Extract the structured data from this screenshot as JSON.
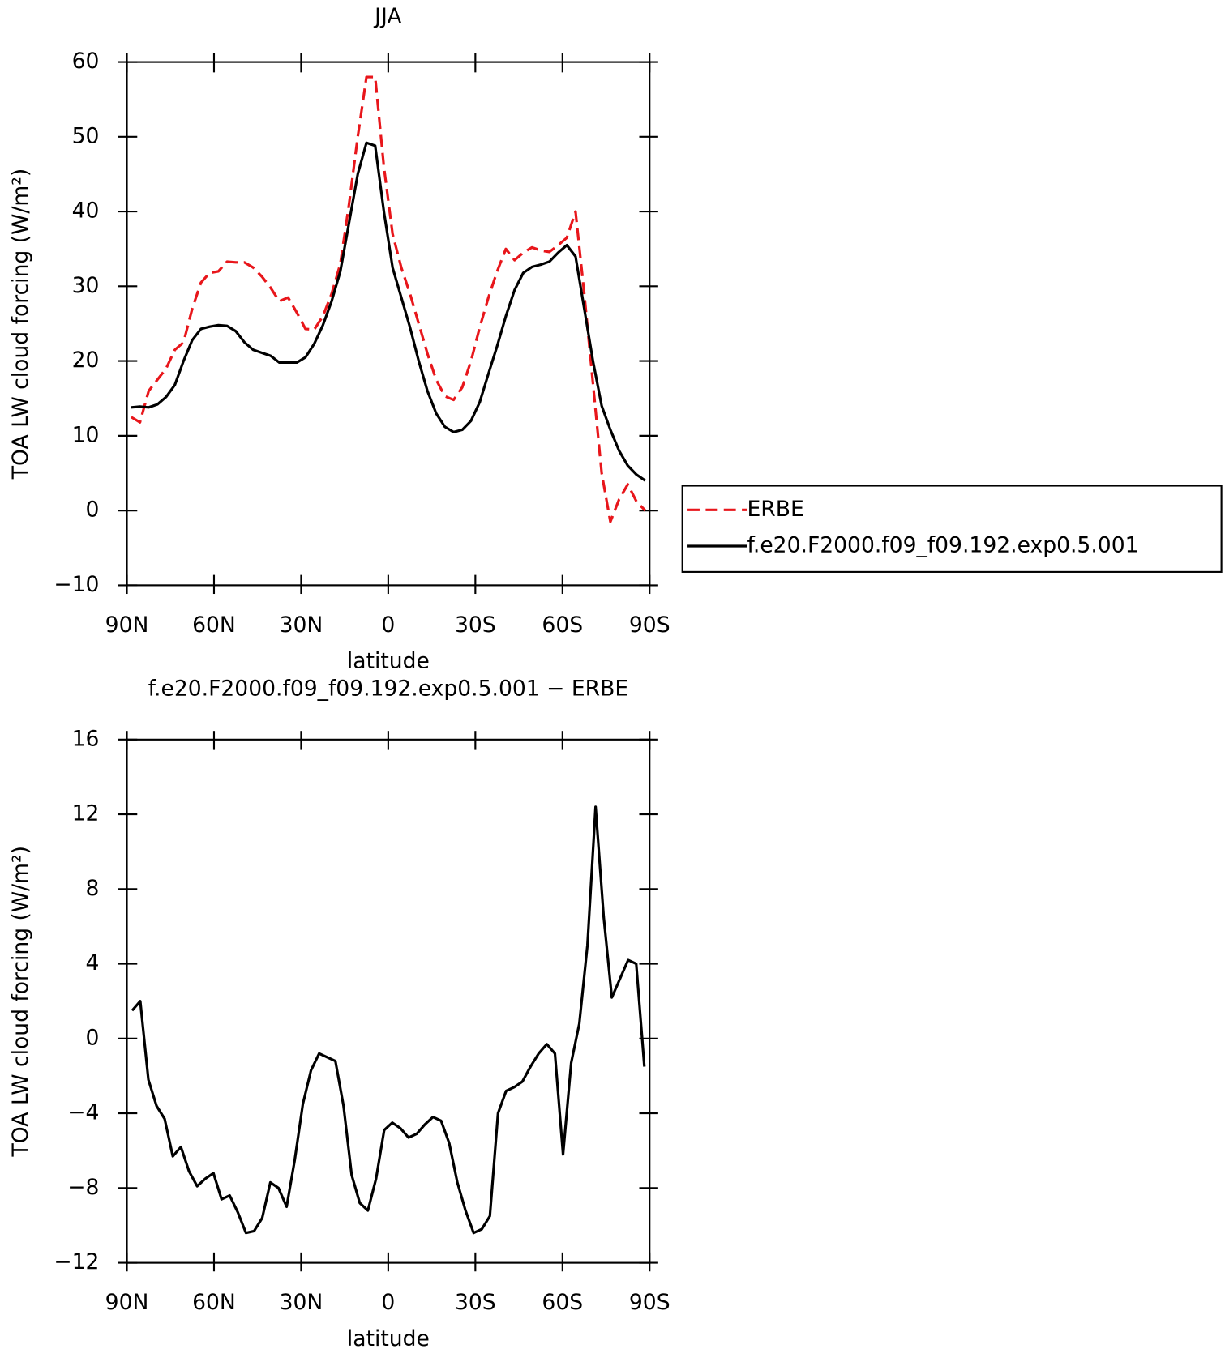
{
  "chart_data": [
    {
      "type": "line",
      "title": "JJA",
      "xlabel": "latitude",
      "ylabel": "TOA LW cloud forcing (W/m²)",
      "x": [
        88.5,
        85.5,
        82.5,
        79.5,
        76.5,
        73.5,
        70.5,
        67.5,
        64.5,
        61.5,
        58.5,
        55.5,
        52.5,
        49.5,
        46.5,
        43.5,
        40.5,
        37.5,
        34.5,
        31.5,
        28.5,
        25.5,
        22.5,
        19.5,
        16.5,
        13.5,
        10.5,
        7.5,
        4.5,
        1.5,
        -1.5,
        -4.5,
        -7.5,
        -10.5,
        -13.5,
        -16.5,
        -19.5,
        -22.5,
        -25.5,
        -28.5,
        -31.5,
        -34.5,
        -37.5,
        -40.5,
        -43.5,
        -46.5,
        -49.5,
        -52.5,
        -55.5,
        -58.5,
        -61.5,
        -64.5,
        -67.5,
        -70.5,
        -73.5,
        -76.5,
        -79.5,
        -82.5,
        -85.5,
        -88.5
      ],
      "series": [
        {
          "name": "ERBE",
          "color": "#e8161b",
          "dash": "dashed",
          "values": [
            12.5,
            11.8,
            16,
            17.5,
            19,
            21.5,
            22.5,
            27,
            30.5,
            31.8,
            32,
            33.3,
            33.2,
            33.2,
            32.5,
            31.3,
            29.8,
            28,
            28.5,
            26.5,
            24.3,
            24.2,
            26,
            29,
            33,
            41,
            50,
            58,
            58,
            46,
            37,
            32.5,
            29,
            25,
            21,
            17.5,
            15.3,
            14.8,
            16.5,
            20,
            24.5,
            28.5,
            32,
            35,
            33.5,
            34.5,
            35.2,
            34.8,
            34.6,
            35.5,
            36.5,
            40,
            29,
            17,
            5,
            -1.5,
            1.5,
            3.5,
            1.2,
            0
          ]
        },
        {
          "name": "f.e20.F2000.f09_f09.192.exp0.5.001",
          "color": "#000000",
          "dash": "solid",
          "values": [
            13.8,
            13.9,
            13.8,
            14.2,
            15.2,
            16.8,
            20,
            22.8,
            24.3,
            24.6,
            24.8,
            24.7,
            24.0,
            22.5,
            21.5,
            21.1,
            20.7,
            19.8,
            19.8,
            19.8,
            20.5,
            22.3,
            24.8,
            28,
            32,
            38.5,
            45,
            49.2,
            48.8,
            40,
            32.5,
            28.5,
            24.5,
            20,
            16,
            13,
            11.2,
            10.5,
            10.8,
            12,
            14.5,
            18.3,
            22,
            26,
            29.5,
            31.8,
            32.6,
            32.9,
            33.3,
            34.5,
            35.5,
            34,
            27,
            20,
            14,
            10.8,
            8,
            6,
            4.8,
            4
          ]
        }
      ],
      "xlim": [
        90,
        -90
      ],
      "xticks": [
        {
          "value": 90,
          "label": "90N"
        },
        {
          "value": 60,
          "label": "60N"
        },
        {
          "value": 30,
          "label": "30N"
        },
        0,
        {
          "value": -30,
          "label": "30S"
        },
        {
          "value": -60,
          "label": "60S"
        },
        {
          "value": -90,
          "label": "90S"
        }
      ],
      "ylim": [
        -10,
        60
      ],
      "yticks": [
        {
          "value": -10,
          "label": "−10"
        },
        0,
        10,
        20,
        30,
        40,
        50,
        60
      ],
      "legend": "right"
    },
    {
      "type": "line",
      "title": "f.e20.F2000.f09_f09.192.exp0.5.001 − ERBE",
      "xlabel": "latitude",
      "ylabel": "TOA LW cloud forcing (W/m²)",
      "x": [
        88.2,
        85.4,
        82.6,
        79.8,
        77.0,
        74.2,
        71.4,
        68.6,
        65.8,
        63.0,
        60.2,
        57.4,
        54.6,
        51.8,
        49.0,
        46.2,
        43.4,
        40.6,
        37.8,
        35.0,
        32.2,
        29.4,
        26.6,
        23.8,
        21.0,
        18.2,
        15.4,
        12.6,
        9.8,
        7.0,
        4.2,
        1.4,
        -1.4,
        -4.2,
        -7.0,
        -9.8,
        -12.6,
        -15.4,
        -18.2,
        -21.0,
        -23.8,
        -26.6,
        -29.4,
        -32.2,
        -35.0,
        -37.8,
        -40.6,
        -43.4,
        -46.2,
        -49.0,
        -51.8,
        -54.6,
        -57.4,
        -60.2,
        -63.0,
        -65.8,
        -68.6,
        -71.4,
        -74.2,
        -77.0,
        -79.8,
        -82.6,
        -85.4,
        -88.2
      ],
      "values": [
        1.5,
        2,
        -2.2,
        -3.6,
        -4.3,
        -6.3,
        -5.8,
        -7.1,
        -7.9,
        -7.5,
        -7.2,
        -8.6,
        -8.4,
        -9.3,
        -10.4,
        -10.3,
        -9.6,
        -7.7,
        -8.0,
        -9.0,
        -6.5,
        -3.5,
        -1.7,
        -0.8,
        -1.0,
        -1.2,
        -3.6,
        -7.3,
        -8.8,
        -9.2,
        -7.5,
        -4.9,
        -4.5,
        -4.8,
        -5.3,
        -5.1,
        -4.6,
        -4.2,
        -4.4,
        -5.6,
        -7.7,
        -9.2,
        -10.4,
        -10.2,
        -9.5,
        -4.0,
        -2.8,
        -2.6,
        -2.3,
        -1.5,
        -0.8,
        -0.3,
        -0.8,
        -6.2,
        -1.3,
        0.8,
        5,
        12.4,
        6.5,
        2.2,
        3.2,
        4.2,
        4,
        -1.5
      ],
      "color": "#000000",
      "xlim": [
        90,
        -90
      ],
      "xticks": [
        {
          "value": 90,
          "label": "90N"
        },
        {
          "value": 60,
          "label": "60N"
        },
        {
          "value": 30,
          "label": "30N"
        },
        0,
        {
          "value": -30,
          "label": "30S"
        },
        {
          "value": -60,
          "label": "60S"
        },
        {
          "value": -90,
          "label": "90S"
        }
      ],
      "ylim": [
        -12,
        16
      ],
      "yticks": [
        {
          "value": -12,
          "label": "−12"
        },
        {
          "value": -8,
          "label": "−8"
        },
        {
          "value": -4,
          "label": "−4"
        },
        0,
        4,
        8,
        12,
        16
      ]
    }
  ]
}
